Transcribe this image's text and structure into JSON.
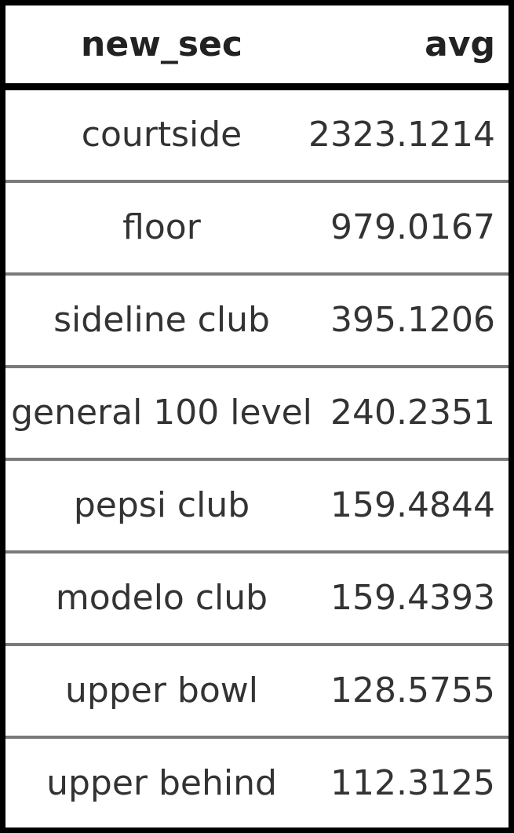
{
  "chart_data": {
    "type": "table",
    "columns": [
      "new_sec",
      "avg"
    ],
    "rows": [
      {
        "new_sec": "courtside",
        "avg": "2323.1214"
      },
      {
        "new_sec": "floor",
        "avg": "979.0167"
      },
      {
        "new_sec": "sideline club",
        "avg": "395.1206"
      },
      {
        "new_sec": "general 100 level",
        "avg": "240.2351"
      },
      {
        "new_sec": "pepsi club",
        "avg": "159.4844"
      },
      {
        "new_sec": "modelo club",
        "avg": "159.4393"
      },
      {
        "new_sec": "upper bowl",
        "avg": "128.5755"
      },
      {
        "new_sec": "upper behind",
        "avg": "112.3125"
      }
    ]
  },
  "colors": {
    "border": "#000000",
    "row_divider": "#7a7a7a",
    "text": "#333333",
    "background": "#ffffff"
  }
}
